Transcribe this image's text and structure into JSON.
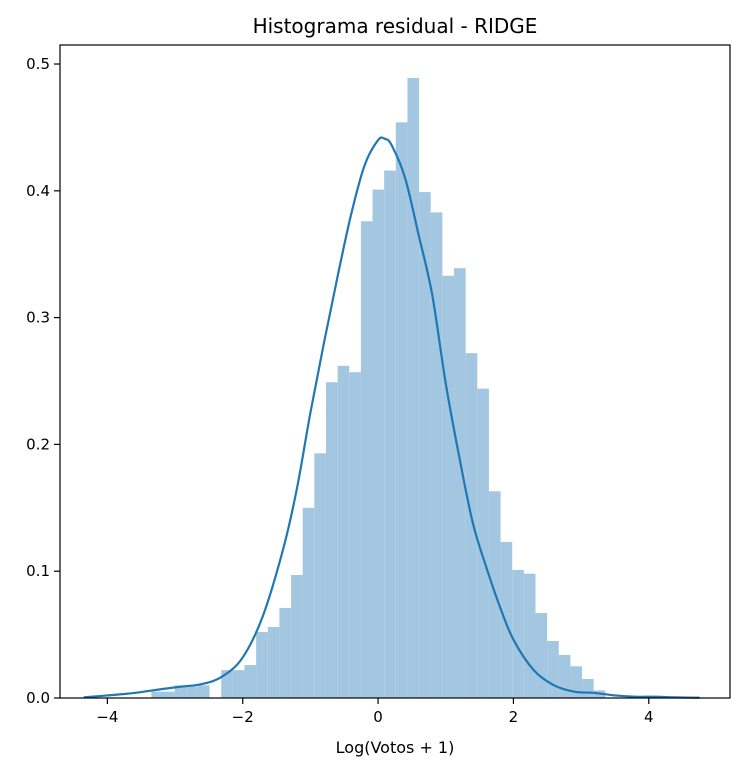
{
  "chart_data": {
    "type": "bar",
    "title": "Histograma residual - RIDGE",
    "xlabel": "Log(Votos + 1)",
    "ylabel": "",
    "xlim": [
      -4.7,
      5.2
    ],
    "ylim": [
      0,
      0.515
    ],
    "xticks": [
      -4,
      -2,
      0,
      2,
      4
    ],
    "xtick_labels": [
      "−4",
      "−2",
      "0",
      "2",
      "4"
    ],
    "yticks": [
      0.0,
      0.1,
      0.2,
      0.3,
      0.4,
      0.5
    ],
    "ytick_labels": [
      "0.0",
      "0.1",
      "0.2",
      "0.3",
      "0.4",
      "0.5"
    ],
    "grid": false,
    "legend": "none",
    "colors": {
      "bars": "#a4c7e1",
      "kde": "#1f77b4"
    },
    "histogram": {
      "bin_start": -3.35,
      "bin_width": 0.172,
      "values": [
        0.005,
        0.005,
        0.01,
        0.009,
        0.01,
        0.0,
        0.022,
        0.022,
        0.026,
        0.052,
        0.056,
        0.071,
        0.097,
        0.15,
        0.193,
        0.249,
        0.262,
        0.257,
        0.376,
        0.401,
        0.416,
        0.454,
        0.489,
        0.399,
        0.383,
        0.333,
        0.339,
        0.272,
        0.244,
        0.163,
        0.123,
        0.101,
        0.098,
        0.067,
        0.045,
        0.034,
        0.025,
        0.015,
        0.006
      ]
    },
    "kde": {
      "x": [
        -4.35,
        -4.0,
        -3.6,
        -3.2,
        -2.9,
        -2.6,
        -2.3,
        -2.0,
        -1.7,
        -1.4,
        -1.2,
        -1.0,
        -0.8,
        -0.6,
        -0.4,
        -0.2,
        0.0,
        0.1,
        0.2,
        0.4,
        0.6,
        0.8,
        1.0,
        1.2,
        1.4,
        1.6,
        1.8,
        2.0,
        2.3,
        2.6,
        2.9,
        3.2,
        3.5,
        3.8,
        4.1,
        4.4,
        4.75
      ],
      "y": [
        0.0005,
        0.002,
        0.004,
        0.007,
        0.009,
        0.011,
        0.017,
        0.032,
        0.065,
        0.118,
        0.165,
        0.225,
        0.28,
        0.332,
        0.381,
        0.42,
        0.44,
        0.441,
        0.436,
        0.41,
        0.365,
        0.318,
        0.248,
        0.19,
        0.138,
        0.103,
        0.072,
        0.046,
        0.022,
        0.01,
        0.005,
        0.004,
        0.002,
        0.001,
        0.001,
        0.0005,
        0.0002
      ]
    }
  }
}
